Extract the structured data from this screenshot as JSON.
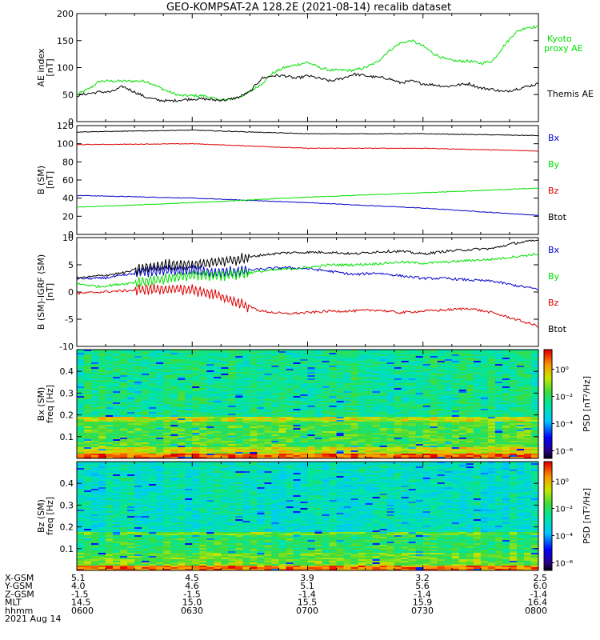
{
  "title": "GEO-KOMPSAT-2A 128.2E (2021-08-14) recalib dataset",
  "colors": {
    "black": "#000000",
    "green": "#00e000",
    "blue": "#0000cc",
    "red": "#dd0000"
  },
  "chart_data": [
    {
      "type": "line",
      "panel": "ae-index",
      "ylabel": "AE index\n[nT]",
      "ylim": [
        0,
        200
      ],
      "yticks": [
        "0",
        "50",
        "100",
        "150",
        "200"
      ],
      "grid": false,
      "x_hours": [
        6.0,
        6.05,
        6.1,
        6.15,
        6.2,
        6.25,
        6.3,
        6.35,
        6.4,
        6.45,
        6.5,
        6.55,
        6.6,
        6.65,
        6.7,
        6.75,
        6.8,
        6.85,
        6.9,
        6.95,
        7.0,
        7.05,
        7.1,
        7.15,
        7.2,
        7.25,
        7.3,
        7.35,
        7.4,
        7.45,
        7.5,
        7.55,
        7.6,
        7.65,
        7.7,
        7.75,
        7.8,
        7.85,
        7.9,
        7.95,
        8.0
      ],
      "series": [
        {
          "name": "Kyoto proxy AE",
          "color_key": "green",
          "values": [
            50,
            60,
            75,
            75,
            75,
            75,
            75,
            65,
            55,
            48,
            48,
            48,
            42,
            40,
            45,
            55,
            70,
            90,
            100,
            105,
            110,
            100,
            95,
            95,
            95,
            100,
            110,
            130,
            145,
            150,
            140,
            125,
            115,
            112,
            112,
            108,
            112,
            140,
            165,
            175,
            175
          ]
        },
        {
          "name": "Themis AE",
          "color_key": "black",
          "values": [
            48,
            52,
            55,
            55,
            65,
            55,
            45,
            40,
            38,
            40,
            42,
            42,
            40,
            40,
            45,
            55,
            80,
            85,
            85,
            80,
            85,
            80,
            75,
            80,
            88,
            85,
            82,
            80,
            72,
            75,
            70,
            68,
            65,
            68,
            70,
            62,
            60,
            55,
            60,
            65,
            70
          ]
        }
      ],
      "legend": [
        "Kyoto\nproxy AE",
        "Themis AE"
      ],
      "legend_placement": "right"
    },
    {
      "type": "line",
      "panel": "b-sm",
      "ylabel": "B (SM)\n[nT]",
      "ylim": [
        0,
        120
      ],
      "yticks": [
        "0",
        "20",
        "40",
        "60",
        "80",
        "100",
        "120"
      ],
      "grid": false,
      "x_hours": [
        6.0,
        6.5,
        7.0,
        7.5,
        8.0
      ],
      "series": [
        {
          "name": "Bx",
          "color_key": "blue",
          "values": [
            43,
            40,
            35,
            29,
            21
          ]
        },
        {
          "name": "By",
          "color_key": "green",
          "values": [
            30,
            35,
            41,
            46,
            51
          ]
        },
        {
          "name": "Bz",
          "color_key": "red",
          "values": [
            99,
            100,
            95,
            95,
            92
          ]
        },
        {
          "name": "Btot",
          "color_key": "black",
          "values": [
            113,
            115,
            111,
            111,
            109
          ]
        }
      ],
      "legend": [
        "Bx",
        "By",
        "Bz",
        "Btot"
      ],
      "legend_placement": "right"
    },
    {
      "type": "line",
      "panel": "b-minus-igrf",
      "ylabel": "B (SM)-IGRF (SM)\n[nT]",
      "ylim": [
        -10,
        10
      ],
      "yticks": [
        "-10",
        "-5",
        "0",
        "5",
        "10"
      ],
      "grid": false,
      "x_hours": [
        6.0,
        6.1,
        6.2,
        6.3,
        6.4,
        6.5,
        6.6,
        6.7,
        6.8,
        6.9,
        7.0,
        7.1,
        7.2,
        7.3,
        7.4,
        7.5,
        7.6,
        7.7,
        7.8,
        7.9,
        8.0
      ],
      "series": [
        {
          "name": "Bx",
          "color_key": "blue",
          "values": [
            2.5,
            2.5,
            3.0,
            3.8,
            4.0,
            4.0,
            3.5,
            3.8,
            4.2,
            4.5,
            4.3,
            3.8,
            3.2,
            3.5,
            3.0,
            2.5,
            2.5,
            2.2,
            2.0,
            1.2,
            0.5
          ]
        },
        {
          "name": "By",
          "color_key": "green",
          "values": [
            1.5,
            1.0,
            1.5,
            2.0,
            2.5,
            3.0,
            3.0,
            3.3,
            3.8,
            4.2,
            4.5,
            5.0,
            5.0,
            5.2,
            5.5,
            5.3,
            5.5,
            5.8,
            6.0,
            6.5,
            7.0
          ]
        },
        {
          "name": "Bz",
          "color_key": "red",
          "values": [
            -0.3,
            0.0,
            0.2,
            0.5,
            0.5,
            0.4,
            -0.5,
            -2.0,
            -3.5,
            -4.0,
            -3.8,
            -3.5,
            -3.5,
            -3.3,
            -3.8,
            -3.5,
            -3.3,
            -3.0,
            -3.8,
            -5.0,
            -6.3
          ]
        },
        {
          "name": "Btot",
          "color_key": "black",
          "values": [
            2.5,
            3.0,
            3.5,
            4.5,
            5.0,
            5.0,
            5.5,
            6.0,
            6.8,
            7.2,
            7.3,
            7.3,
            7.0,
            7.4,
            7.5,
            7.0,
            7.5,
            7.8,
            8.0,
            9.0,
            9.5
          ]
        }
      ],
      "legend": [
        "Bx",
        "By",
        "Bz",
        "Btot"
      ],
      "legend_placement": "right"
    },
    {
      "type": "heatmap",
      "panel": "bx-spectrogram",
      "ylabel": "Bx (SM)\nfreq [Hz]",
      "ylim": [
        0,
        0.5
      ],
      "yticks": [
        "0.1",
        "0.2",
        "0.3",
        "0.4"
      ],
      "colorbar_label": "PSD [nT²/Hz]",
      "colorbar_ticks": [
        "10⁰",
        "10⁻²",
        "10⁻⁴",
        "10⁻⁶"
      ],
      "description_levels": {
        "low_freq": "high PSD (yellow/red)",
        "mid_freq": "green",
        "high_freq": "green/cyan"
      }
    },
    {
      "type": "heatmap",
      "panel": "bz-spectrogram",
      "ylabel": "Bz (SM)\nfreq [Hz]",
      "ylim": [
        0,
        0.5
      ],
      "yticks": [
        "0.1",
        "0.2",
        "0.3",
        "0.4"
      ],
      "colorbar_label": "PSD [nT²/Hz]",
      "colorbar_ticks": [
        "10⁰",
        "10⁻²",
        "10⁻⁴",
        "10⁻⁶"
      ]
    }
  ],
  "footer": {
    "row_labels": [
      "X-GSM",
      "Y-GSM",
      "Z-GSM",
      "MLT",
      "hhmm"
    ],
    "columns": [
      [
        "5.1",
        "4.0",
        "-1.5",
        "14.5",
        "0600"
      ],
      [
        "4.5",
        "4.6",
        "-1.5",
        "15.0",
        "0630"
      ],
      [
        "3.9",
        "5.1",
        "-1.4",
        "15.5",
        "0700"
      ],
      [
        "3.2",
        "5.6",
        "-1.4",
        "15.9",
        "0730"
      ],
      [
        "2.5",
        "6.0",
        "-1.4",
        "16.4",
        "0800"
      ]
    ],
    "date": "2021 Aug 14"
  }
}
